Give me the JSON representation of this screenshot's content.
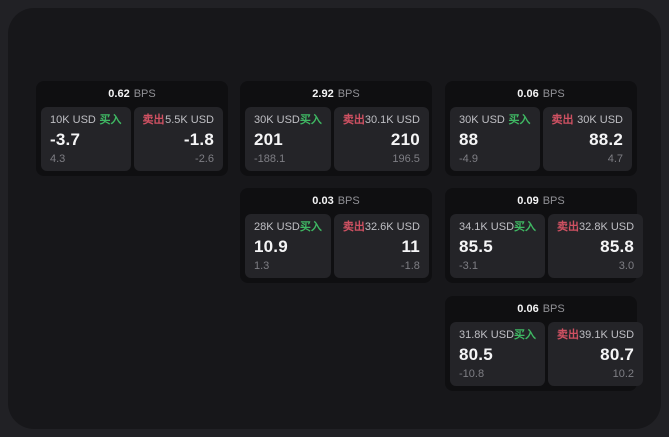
{
  "labels": {
    "bps_unit": "BPS",
    "buy": "买入",
    "sell": "卖出"
  },
  "colors": {
    "page_background": "#212125",
    "panel_background": "#17171a",
    "card_background": "#0f0f11",
    "tile_background": "#242428",
    "buy_green": "#3fb863",
    "sell_red": "#cf5162"
  },
  "cards": [
    {
      "bps": "0.62",
      "buy": {
        "amount": "10K USD",
        "price": "-3.7",
        "delta": "4.3"
      },
      "sell": {
        "amount": "5.5K USD",
        "price": "-1.8",
        "delta": "-2.6"
      }
    },
    {
      "bps": "2.92",
      "buy": {
        "amount": "30K USD",
        "price": "201",
        "delta": "-188.1"
      },
      "sell": {
        "amount": "30.1K USD",
        "price": "210",
        "delta": "196.5"
      }
    },
    {
      "bps": "0.06",
      "buy": {
        "amount": "30K USD",
        "price": "88",
        "delta": "-4.9"
      },
      "sell": {
        "amount": "30K USD",
        "price": "88.2",
        "delta": "4.7"
      }
    },
    {
      "bps": "0.03",
      "buy": {
        "amount": "28K USD",
        "price": "10.9",
        "delta": "1.3"
      },
      "sell": {
        "amount": "32.6K USD",
        "price": "11",
        "delta": "-1.8"
      }
    },
    {
      "bps": "0.09",
      "buy": {
        "amount": "34.1K USD",
        "price": "85.5",
        "delta": "-3.1"
      },
      "sell": {
        "amount": "32.8K USD",
        "price": "85.8",
        "delta": "3.0"
      }
    },
    {
      "bps": "0.06",
      "buy": {
        "amount": "31.8K USD",
        "price": "80.5",
        "delta": "-10.8"
      },
      "sell": {
        "amount": "39.1K USD",
        "price": "80.7",
        "delta": "10.2"
      }
    }
  ]
}
